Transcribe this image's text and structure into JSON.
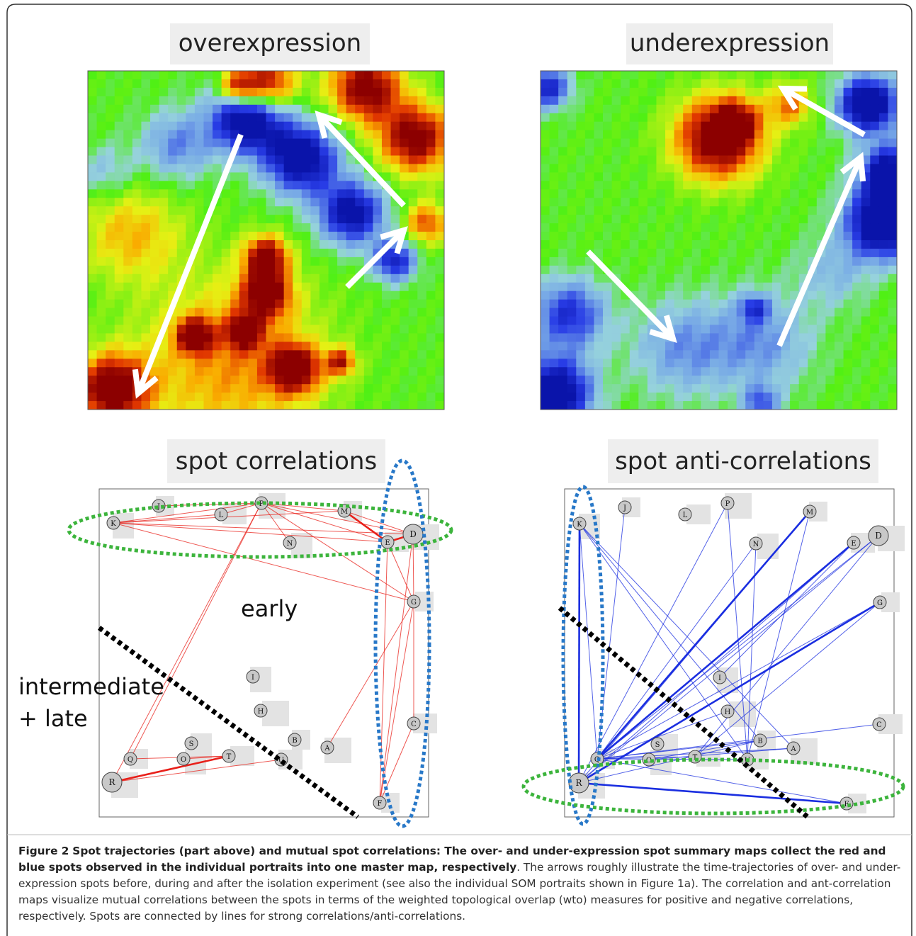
{
  "panels": [
    {
      "title": "overexpression"
    },
    {
      "title": "underexpression"
    }
  ],
  "networks": [
    {
      "title": "spot correlations",
      "annotations": [
        "early",
        "intermediate",
        "+ late"
      ],
      "nodes": [
        "J",
        "K",
        "L",
        "P",
        "M",
        "N",
        "E",
        "D",
        "G",
        "I",
        "C",
        "H",
        "B",
        "S",
        "T",
        "A",
        "Q",
        "O",
        "U",
        "R",
        "F"
      ]
    },
    {
      "title": "spot anti-correlations",
      "nodes": [
        "J",
        "K",
        "L",
        "P",
        "M",
        "N",
        "E",
        "D",
        "G",
        "I",
        "C",
        "H",
        "B",
        "S",
        "T",
        "A",
        "Q",
        "O",
        "U",
        "R",
        "F"
      ]
    }
  ],
  "caption": {
    "label": "Figure 2",
    "bold": "Spot trajectories (part above) and mutual spot correlations: The over- and under-expression spot summary maps collect the red and blue spots observed in the individual portraits into one master map, respectively",
    "text": ". The arrows roughly illustrate the time-trajectories of over- and under-expression spots before, during and after the isolation experiment (see also the individual SOM portraits shown in Figure 1a). The correlation and ant-correlation maps visualize mutual correlations between the spots in terms of the weighted topological overlap (wto) measures for positive and negative correlations, respectively. Spots are connected by lines for strong correlations/anti-correlations."
  }
}
